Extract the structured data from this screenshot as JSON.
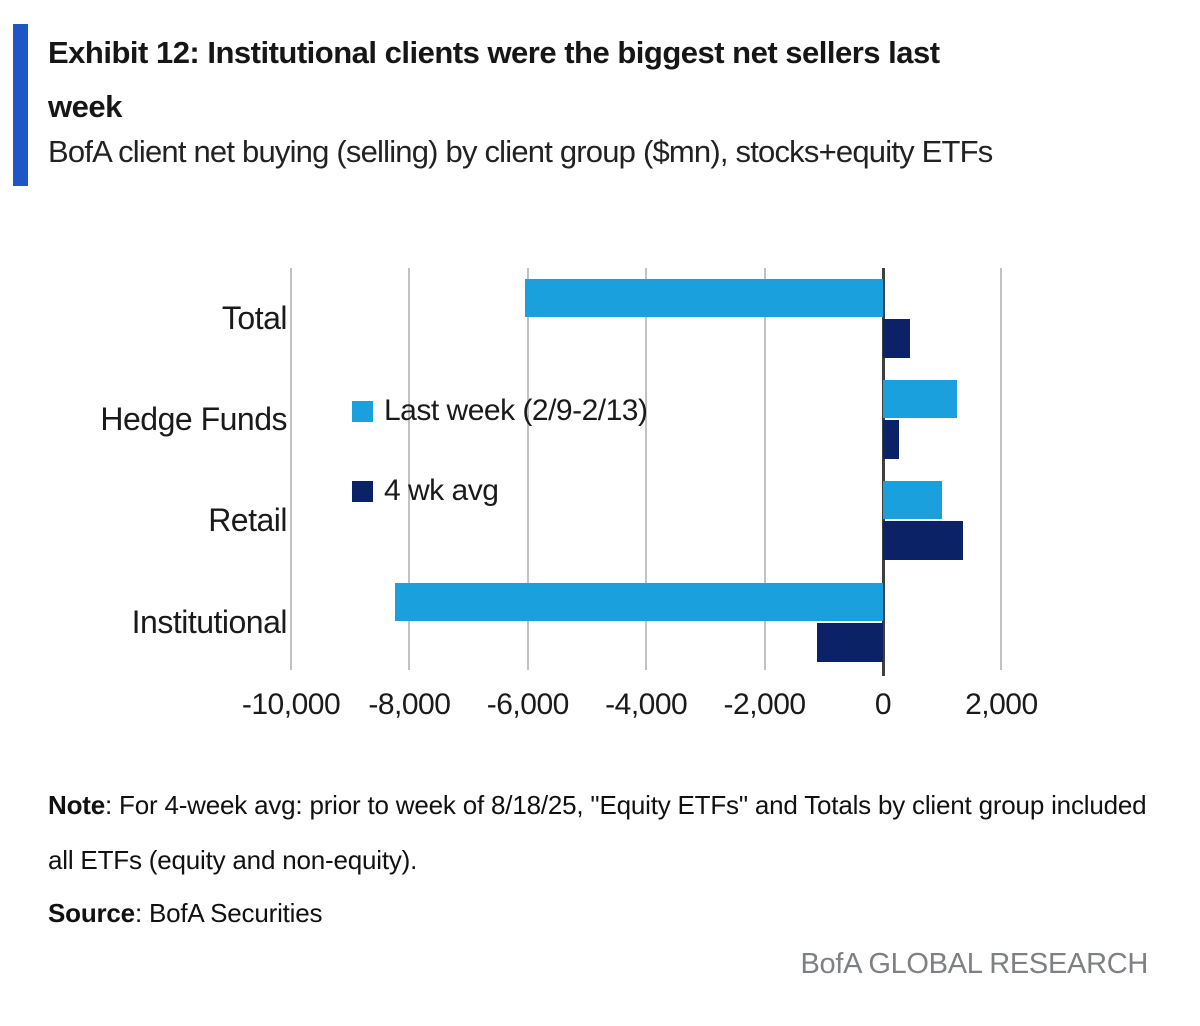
{
  "header": {
    "title_line1": "Exhibit 12: Institutional clients were the biggest net sellers last",
    "title_line2": "week",
    "subtitle": "BofA client net buying (selling) by client group ($mn), stocks+equity ETFs"
  },
  "chart_data": {
    "type": "bar",
    "orientation": "horizontal",
    "title": "Exhibit 12: Institutional clients were the biggest net sellers last week",
    "subtitle": "BofA client net buying (selling) by client group ($mn), stocks+equity ETFs",
    "unit": "$mn",
    "categories": [
      "Total",
      "Hedge Funds",
      "Retail",
      "Institutional"
    ],
    "series": [
      {
        "name": "Last week (2/9-2/13)",
        "color": "#1ba0de",
        "values": [
          -6050,
          1250,
          1000,
          -8250
        ]
      },
      {
        "name": "4 wk avg",
        "color": "#0b2366",
        "values": [
          450,
          270,
          1350,
          -1120
        ]
      }
    ],
    "xlim": [
      -10900,
      3300
    ],
    "xticks": [
      -10000,
      -8000,
      -6000,
      -4000,
      -2000,
      0,
      2000
    ],
    "tick_labels": [
      "-10,000",
      "-8,000",
      "-6,000",
      "-4,000",
      "-2,000",
      "0",
      "2,000"
    ],
    "grid": "vertical",
    "legend_position": "inside-left"
  },
  "notes": {
    "note_label": "Note",
    "note_line1": ": For 4-week avg: prior to week of 8/18/25, \"Equity ETFs\" and Totals by client group included",
    "note_line2": "all ETFs (equity and non-equity).",
    "source_label": "Source",
    "source_text": ": BofA Securities"
  },
  "footer": {
    "brand": "BofA GLOBAL RESEARCH"
  },
  "colors": {
    "accent_bar": "#1f56c5",
    "series_light_blue": "#1ba0de",
    "series_navy": "#0b2366",
    "gridline": "#c2c2c2",
    "zero_axis": "#3f3f3f",
    "footer_gray": "#7e8083"
  }
}
